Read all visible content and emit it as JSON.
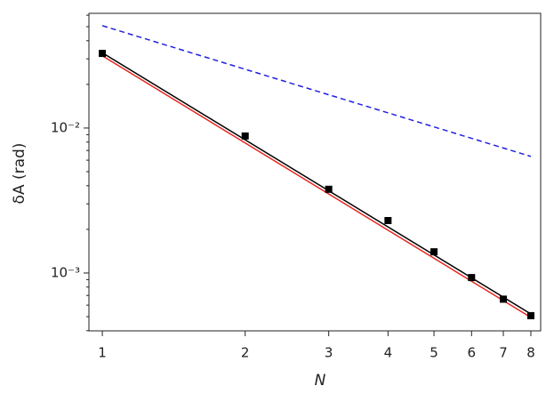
{
  "chart_data": {
    "type": "scatter",
    "xlabel": "N",
    "ylabel": "δA (rad)",
    "xscale": "log",
    "yscale": "log",
    "xlim": [
      0.937,
      8.39
    ],
    "ylim": [
      0.000399,
      0.0618
    ],
    "xticks": [
      1,
      2,
      3,
      4,
      5,
      6,
      7,
      8
    ],
    "yticks": [
      {
        "value": 0.01,
        "label": "10⁻²"
      },
      {
        "value": 0.001,
        "label": "10⁻³"
      }
    ],
    "yminorticks": [
      0.0004,
      0.0005,
      0.0006,
      0.0007,
      0.0008,
      0.0009,
      0.002,
      0.003,
      0.004,
      0.005,
      0.006,
      0.007,
      0.008,
      0.009,
      0.02,
      0.03,
      0.04,
      0.05,
      0.06
    ],
    "series": [
      {
        "mode": "line",
        "color": "#000000",
        "dash": false,
        "x": [
          1,
          8
        ],
        "values": [
          0.033,
          0.000522
        ]
      },
      {
        "mode": "line",
        "color": "#e8251f",
        "dash": false,
        "x": [
          1,
          8
        ],
        "values": [
          0.0315,
          0.000494
        ]
      },
      {
        "mode": "line",
        "color": "#2020e0",
        "dash": true,
        "x": [
          1,
          8
        ],
        "values": [
          0.0508,
          0.00637
        ]
      },
      {
        "mode": "markers",
        "color": "#000000",
        "x": [
          1,
          2,
          3,
          4,
          5,
          6,
          7,
          8
        ],
        "values": [
          0.0327,
          0.00881,
          0.00378,
          0.0023,
          0.0014,
          0.00093,
          0.00066,
          0.000508
        ]
      }
    ]
  }
}
